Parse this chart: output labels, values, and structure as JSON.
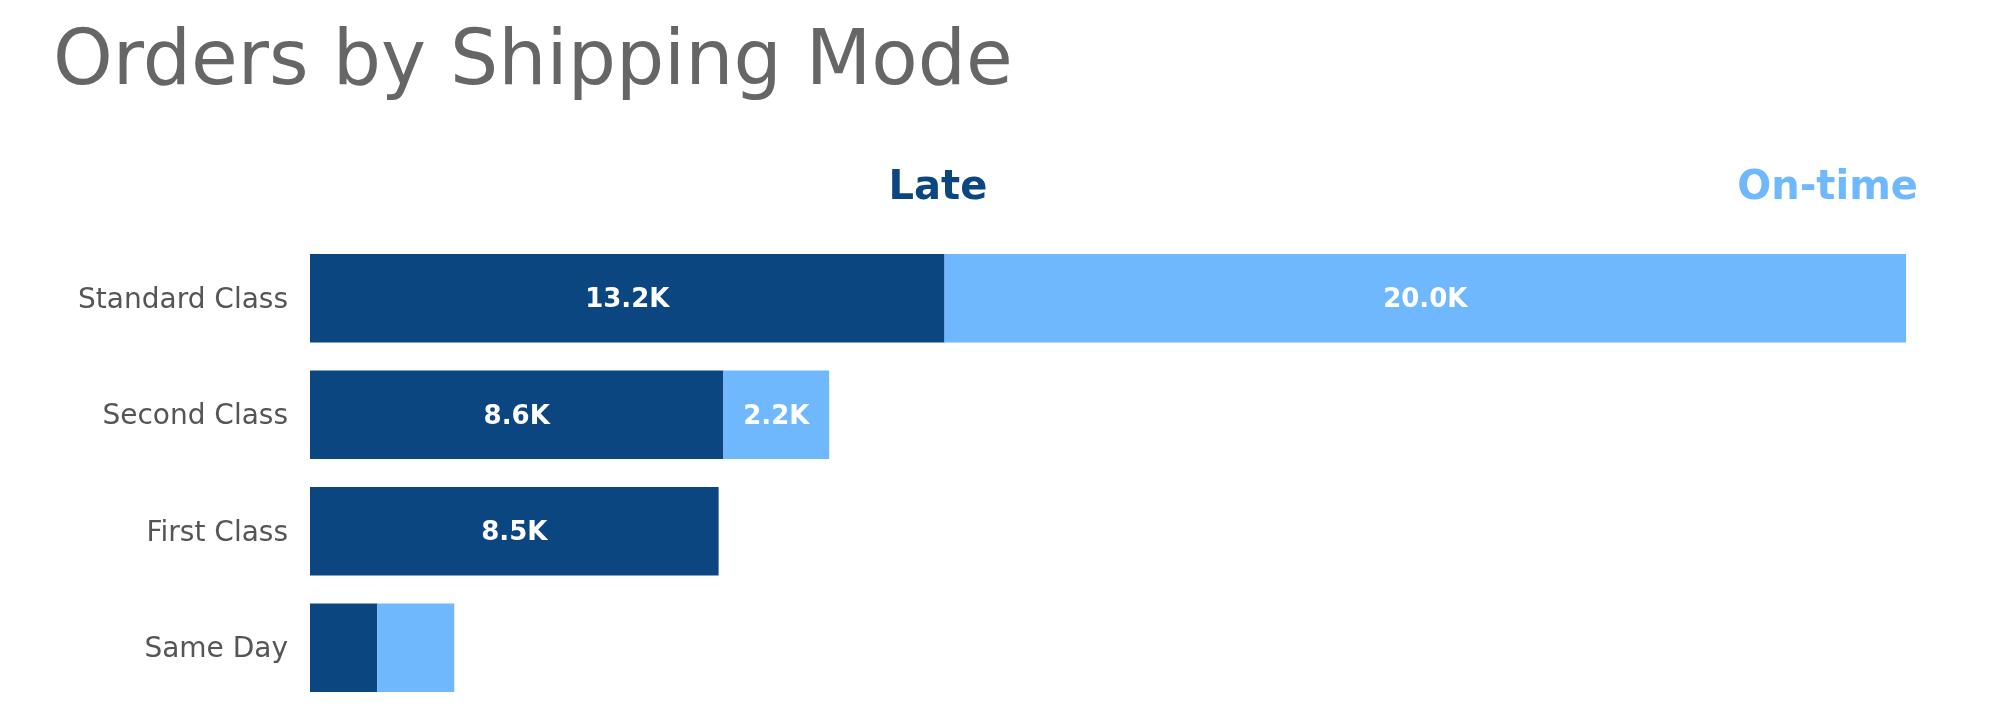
{
  "chart_data": {
    "type": "bar",
    "title": "Orders by Shipping Mode",
    "orientation": "horizontal",
    "stacked": true,
    "legend": "top right",
    "categories": [
      "Standard Class",
      "Second Class",
      "First Class",
      "Same Day"
    ],
    "series": [
      {
        "name": "Late",
        "color": "#0b4680",
        "values": [
          13.2,
          8.6,
          8.5,
          1.4
        ],
        "value_labels": [
          "13.2K",
          "8.6K",
          "8.5K",
          null
        ]
      },
      {
        "name": "On-time",
        "color": "#6fb8fd",
        "values": [
          20.0,
          2.2,
          0,
          1.6
        ],
        "value_labels": [
          "20.0K",
          "2.2K",
          null,
          null
        ]
      }
    ]
  }
}
